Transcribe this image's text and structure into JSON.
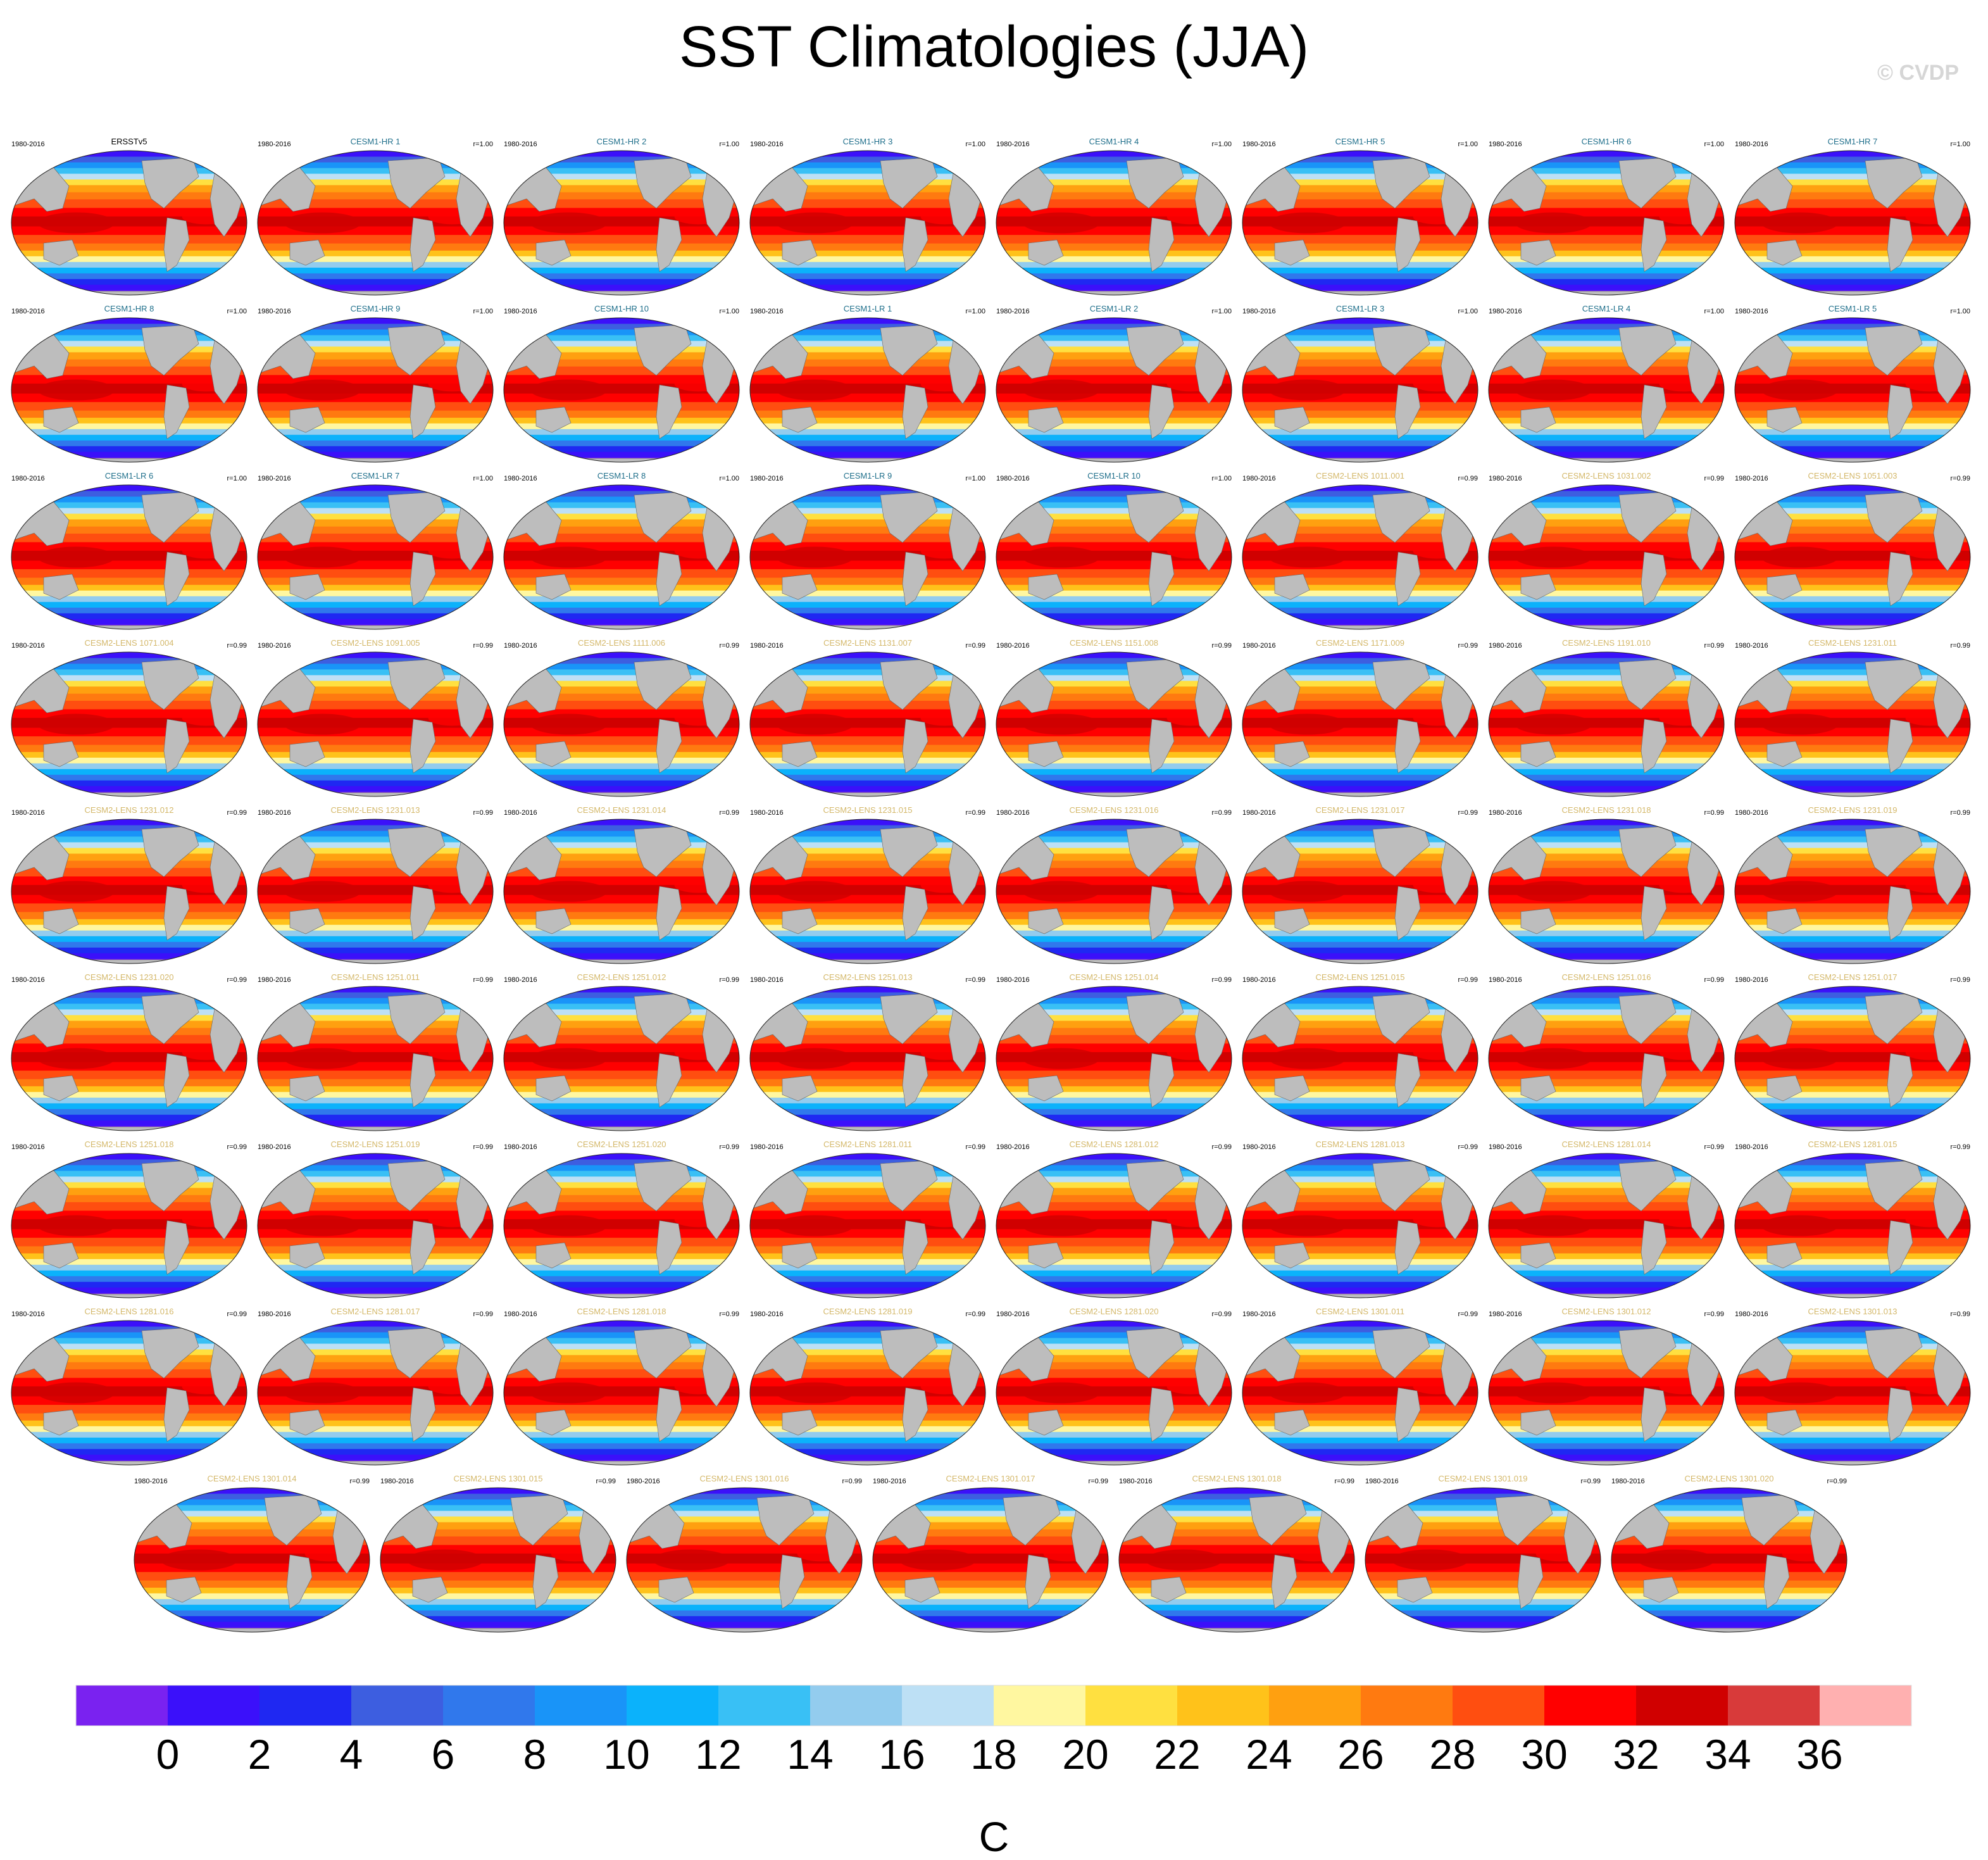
{
  "title": "SST Climatologies (JJA)",
  "watermark": "© CVDP",
  "colors": {
    "land": "#bdbdbd",
    "obs_name": "#000000",
    "cesm1_name": "#1f6f8b",
    "cesm2_name": "#d4b86a"
  },
  "chart_data": {
    "type": "map-grid",
    "title": "SST Climatologies (JJA)",
    "colorbar": {
      "unit": "C",
      "ticks": [
        "0",
        "2",
        "4",
        "6",
        "8",
        "10",
        "12",
        "14",
        "16",
        "18",
        "20",
        "22",
        "24",
        "26",
        "28",
        "30",
        "32",
        "34",
        "36"
      ],
      "levels": [
        0,
        2,
        4,
        6,
        8,
        10,
        12,
        14,
        16,
        18,
        20,
        22,
        24,
        26,
        28,
        30,
        32,
        34,
        36
      ],
      "colors": [
        "#7a22f0",
        "#3b10fa",
        "#1f28f2",
        "#3d5ee0",
        "#3078ec",
        "#1994f8",
        "#0bb2fb",
        "#39c0f5",
        "#93ccee",
        "#bde0f5",
        "#fff7a0",
        "#ffe040",
        "#ffc21a",
        "#ffa010",
        "#ff7a10",
        "#ff4e10",
        "#ff0000",
        "#d00000",
        "#d83a3a",
        "#ffb0b0"
      ]
    },
    "panels": [
      {
        "name": "ERSSTv5",
        "years": "1980-2016",
        "r": "",
        "group": "obs"
      },
      {
        "name": "CESM1-HR 1",
        "years": "1980-2016",
        "r": "r=1.00",
        "group": "cesm1"
      },
      {
        "name": "CESM1-HR 2",
        "years": "1980-2016",
        "r": "r=1.00",
        "group": "cesm1"
      },
      {
        "name": "CESM1-HR 3",
        "years": "1980-2016",
        "r": "r=1.00",
        "group": "cesm1"
      },
      {
        "name": "CESM1-HR 4",
        "years": "1980-2016",
        "r": "r=1.00",
        "group": "cesm1"
      },
      {
        "name": "CESM1-HR 5",
        "years": "1980-2016",
        "r": "r=1.00",
        "group": "cesm1"
      },
      {
        "name": "CESM1-HR 6",
        "years": "1980-2016",
        "r": "r=1.00",
        "group": "cesm1"
      },
      {
        "name": "CESM1-HR 7",
        "years": "1980-2016",
        "r": "r=1.00",
        "group": "cesm1"
      },
      {
        "name": "CESM1-HR 8",
        "years": "1980-2016",
        "r": "r=1.00",
        "group": "cesm1"
      },
      {
        "name": "CESM1-HR 9",
        "years": "1980-2016",
        "r": "r=1.00",
        "group": "cesm1"
      },
      {
        "name": "CESM1-HR 10",
        "years": "1980-2016",
        "r": "r=1.00",
        "group": "cesm1"
      },
      {
        "name": "CESM1-LR 1",
        "years": "1980-2016",
        "r": "r=1.00",
        "group": "cesm1"
      },
      {
        "name": "CESM1-LR 2",
        "years": "1980-2016",
        "r": "r=1.00",
        "group": "cesm1"
      },
      {
        "name": "CESM1-LR 3",
        "years": "1980-2016",
        "r": "r=1.00",
        "group": "cesm1"
      },
      {
        "name": "CESM1-LR 4",
        "years": "1980-2016",
        "r": "r=1.00",
        "group": "cesm1"
      },
      {
        "name": "CESM1-LR 5",
        "years": "1980-2016",
        "r": "r=1.00",
        "group": "cesm1"
      },
      {
        "name": "CESM1-LR 6",
        "years": "1980-2016",
        "r": "r=1.00",
        "group": "cesm1"
      },
      {
        "name": "CESM1-LR 7",
        "years": "1980-2016",
        "r": "r=1.00",
        "group": "cesm1"
      },
      {
        "name": "CESM1-LR 8",
        "years": "1980-2016",
        "r": "r=1.00",
        "group": "cesm1"
      },
      {
        "name": "CESM1-LR 9",
        "years": "1980-2016",
        "r": "r=1.00",
        "group": "cesm1"
      },
      {
        "name": "CESM1-LR 10",
        "years": "1980-2016",
        "r": "r=1.00",
        "group": "cesm1"
      },
      {
        "name": "CESM2-LENS 1011.001",
        "years": "1980-2016",
        "r": "r=0.99",
        "group": "cesm2"
      },
      {
        "name": "CESM2-LENS 1031.002",
        "years": "1980-2016",
        "r": "r=0.99",
        "group": "cesm2"
      },
      {
        "name": "CESM2-LENS 1051.003",
        "years": "1980-2016",
        "r": "r=0.99",
        "group": "cesm2"
      },
      {
        "name": "CESM2-LENS 1071.004",
        "years": "1980-2016",
        "r": "r=0.99",
        "group": "cesm2"
      },
      {
        "name": "CESM2-LENS 1091.005",
        "years": "1980-2016",
        "r": "r=0.99",
        "group": "cesm2"
      },
      {
        "name": "CESM2-LENS 1111.006",
        "years": "1980-2016",
        "r": "r=0.99",
        "group": "cesm2"
      },
      {
        "name": "CESM2-LENS 1131.007",
        "years": "1980-2016",
        "r": "r=0.99",
        "group": "cesm2"
      },
      {
        "name": "CESM2-LENS 1151.008",
        "years": "1980-2016",
        "r": "r=0.99",
        "group": "cesm2"
      },
      {
        "name": "CESM2-LENS 1171.009",
        "years": "1980-2016",
        "r": "r=0.99",
        "group": "cesm2"
      },
      {
        "name": "CESM2-LENS 1191.010",
        "years": "1980-2016",
        "r": "r=0.99",
        "group": "cesm2"
      },
      {
        "name": "CESM2-LENS 1231.011",
        "years": "1980-2016",
        "r": "r=0.99",
        "group": "cesm2"
      },
      {
        "name": "CESM2-LENS 1231.012",
        "years": "1980-2016",
        "r": "r=0.99",
        "group": "cesm2"
      },
      {
        "name": "CESM2-LENS 1231.013",
        "years": "1980-2016",
        "r": "r=0.99",
        "group": "cesm2"
      },
      {
        "name": "CESM2-LENS 1231.014",
        "years": "1980-2016",
        "r": "r=0.99",
        "group": "cesm2"
      },
      {
        "name": "CESM2-LENS 1231.015",
        "years": "1980-2016",
        "r": "r=0.99",
        "group": "cesm2"
      },
      {
        "name": "CESM2-LENS 1231.016",
        "years": "1980-2016",
        "r": "r=0.99",
        "group": "cesm2"
      },
      {
        "name": "CESM2-LENS 1231.017",
        "years": "1980-2016",
        "r": "r=0.99",
        "group": "cesm2"
      },
      {
        "name": "CESM2-LENS 1231.018",
        "years": "1980-2016",
        "r": "r=0.99",
        "group": "cesm2"
      },
      {
        "name": "CESM2-LENS 1231.019",
        "years": "1980-2016",
        "r": "r=0.99",
        "group": "cesm2"
      },
      {
        "name": "CESM2-LENS 1231.020",
        "years": "1980-2016",
        "r": "r=0.99",
        "group": "cesm2"
      },
      {
        "name": "CESM2-LENS 1251.011",
        "years": "1980-2016",
        "r": "r=0.99",
        "group": "cesm2"
      },
      {
        "name": "CESM2-LENS 1251.012",
        "years": "1980-2016",
        "r": "r=0.99",
        "group": "cesm2"
      },
      {
        "name": "CESM2-LENS 1251.013",
        "years": "1980-2016",
        "r": "r=0.99",
        "group": "cesm2"
      },
      {
        "name": "CESM2-LENS 1251.014",
        "years": "1980-2016",
        "r": "r=0.99",
        "group": "cesm2"
      },
      {
        "name": "CESM2-LENS 1251.015",
        "years": "1980-2016",
        "r": "r=0.99",
        "group": "cesm2"
      },
      {
        "name": "CESM2-LENS 1251.016",
        "years": "1980-2016",
        "r": "r=0.99",
        "group": "cesm2"
      },
      {
        "name": "CESM2-LENS 1251.017",
        "years": "1980-2016",
        "r": "r=0.99",
        "group": "cesm2"
      },
      {
        "name": "CESM2-LENS 1251.018",
        "years": "1980-2016",
        "r": "r=0.99",
        "group": "cesm2"
      },
      {
        "name": "CESM2-LENS 1251.019",
        "years": "1980-2016",
        "r": "r=0.99",
        "group": "cesm2"
      },
      {
        "name": "CESM2-LENS 1251.020",
        "years": "1980-2016",
        "r": "r=0.99",
        "group": "cesm2"
      },
      {
        "name": "CESM2-LENS 1281.011",
        "years": "1980-2016",
        "r": "r=0.99",
        "group": "cesm2"
      },
      {
        "name": "CESM2-LENS 1281.012",
        "years": "1980-2016",
        "r": "r=0.99",
        "group": "cesm2"
      },
      {
        "name": "CESM2-LENS 1281.013",
        "years": "1980-2016",
        "r": "r=0.99",
        "group": "cesm2"
      },
      {
        "name": "CESM2-LENS 1281.014",
        "years": "1980-2016",
        "r": "r=0.99",
        "group": "cesm2"
      },
      {
        "name": "CESM2-LENS 1281.015",
        "years": "1980-2016",
        "r": "r=0.99",
        "group": "cesm2"
      },
      {
        "name": "CESM2-LENS 1281.016",
        "years": "1980-2016",
        "r": "r=0.99",
        "group": "cesm2"
      },
      {
        "name": "CESM2-LENS 1281.017",
        "years": "1980-2016",
        "r": "r=0.99",
        "group": "cesm2"
      },
      {
        "name": "CESM2-LENS 1281.018",
        "years": "1980-2016",
        "r": "r=0.99",
        "group": "cesm2"
      },
      {
        "name": "CESM2-LENS 1281.019",
        "years": "1980-2016",
        "r": "r=0.99",
        "group": "cesm2"
      },
      {
        "name": "CESM2-LENS 1281.020",
        "years": "1980-2016",
        "r": "r=0.99",
        "group": "cesm2"
      },
      {
        "name": "CESM2-LENS 1301.011",
        "years": "1980-2016",
        "r": "r=0.99",
        "group": "cesm2"
      },
      {
        "name": "CESM2-LENS 1301.012",
        "years": "1980-2016",
        "r": "r=0.99",
        "group": "cesm2"
      },
      {
        "name": "CESM2-LENS 1301.013",
        "years": "1980-2016",
        "r": "r=0.99",
        "group": "cesm2"
      },
      {
        "name": "CESM2-LENS 1301.014",
        "years": "1980-2016",
        "r": "r=0.99",
        "group": "cesm2"
      },
      {
        "name": "CESM2-LENS 1301.015",
        "years": "1980-2016",
        "r": "r=0.99",
        "group": "cesm2"
      },
      {
        "name": "CESM2-LENS 1301.016",
        "years": "1980-2016",
        "r": "r=0.99",
        "group": "cesm2"
      },
      {
        "name": "CESM2-LENS 1301.017",
        "years": "1980-2016",
        "r": "r=0.99",
        "group": "cesm2"
      },
      {
        "name": "CESM2-LENS 1301.018",
        "years": "1980-2016",
        "r": "r=0.99",
        "group": "cesm2"
      },
      {
        "name": "CESM2-LENS 1301.019",
        "years": "1980-2016",
        "r": "r=0.99",
        "group": "cesm2"
      },
      {
        "name": "CESM2-LENS 1301.020",
        "years": "1980-2016",
        "r": "r=0.99",
        "group": "cesm2"
      }
    ]
  }
}
